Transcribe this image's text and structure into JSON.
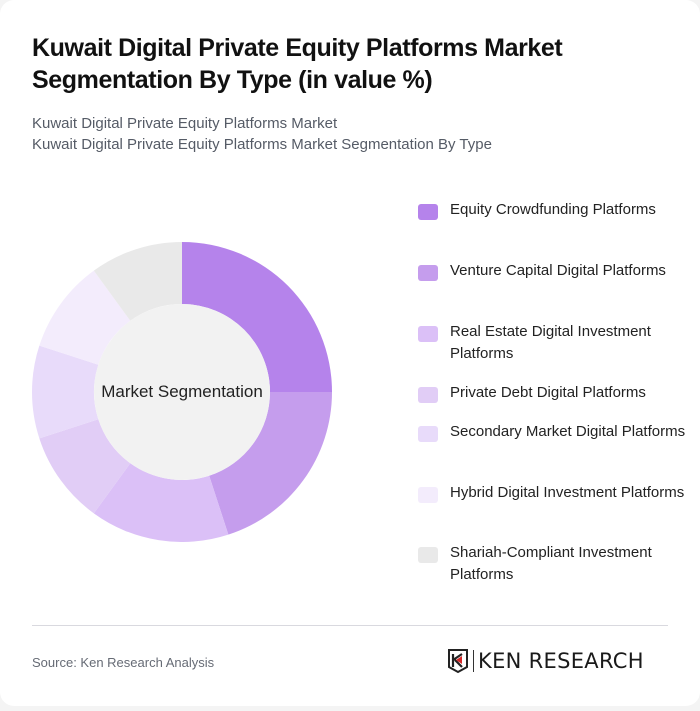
{
  "header": {
    "title": "Kuwait Digital Private Equity Platforms Market Segmentation By Type (in value %)",
    "subtitle_line1": "Kuwait Digital Private Equity Platforms Market",
    "subtitle_line2": "Kuwait Digital Private Equity Platforms Market Segmentation By Type"
  },
  "chart_data": {
    "type": "pie",
    "variant": "donut",
    "title": "Kuwait Digital Private Equity Platforms Market Segmentation By Type (in value %)",
    "center_label": "Market Segmentation",
    "categories": [
      "Equity Crowdfunding Platforms",
      "Venture Capital Digital Platforms",
      "Real Estate Digital Investment Platforms",
      "Private Debt Digital Platforms",
      "Secondary Market Digital Platforms",
      "Hybrid Digital Investment Platforms",
      "Shariah-Compliant Investment Platforms"
    ],
    "values": [
      25,
      20,
      15,
      10,
      10,
      10,
      10
    ],
    "colors": [
      "#b583eb",
      "#c59ded",
      "#dbc0f7",
      "#e1cdf6",
      "#e8dbfa",
      "#f3ecfc",
      "#e9e9e9"
    ],
    "legend_position": "right"
  },
  "legend": {
    "items": [
      {
        "label": "Equity Crowdfunding Platforms",
        "color": "#b583eb"
      },
      {
        "label": "Venture Capital Digital Platforms",
        "color": "#c59ded"
      },
      {
        "label": "Real Estate Digital Investment Platforms",
        "color": "#dbc0f7"
      },
      {
        "label": "Private Debt Digital Platforms",
        "color": "#e1cdf6"
      },
      {
        "label": "Secondary Market Digital Platforms",
        "color": "#e8dbfa"
      },
      {
        "label": "Hybrid Digital Investment Platforms",
        "color": "#f3ecfc"
      },
      {
        "label": "Shariah-Compliant Investment Platforms",
        "color": "#e9e9e9"
      }
    ]
  },
  "footer": {
    "source": "Source: Ken Research Analysis",
    "logo_text": "KEN RESEARCH"
  }
}
